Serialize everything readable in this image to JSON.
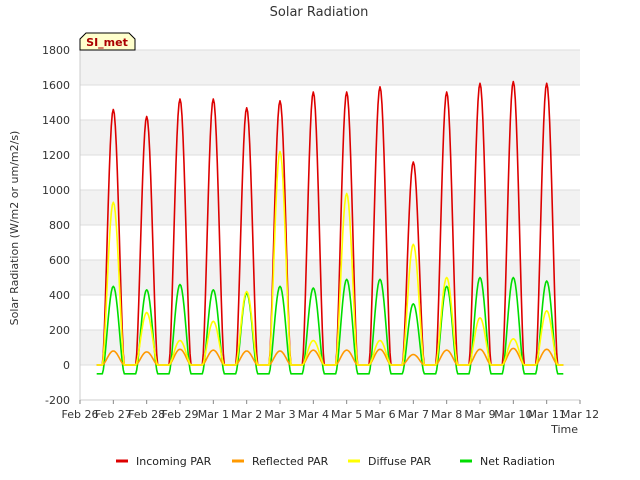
{
  "chart_data": {
    "type": "line",
    "title": "Solar Radiation",
    "xlabel": "Time",
    "ylabel": "Solar Radiation (W/m2 or um/m2/s)",
    "ylim": [
      -200,
      1800
    ],
    "yticks": [
      -200,
      0,
      200,
      400,
      600,
      800,
      1000,
      1200,
      1400,
      1600,
      1800
    ],
    "xlim": [
      0,
      15
    ],
    "x_tick_labels": [
      "Feb 26",
      "Feb 27",
      "Feb 28",
      "Feb 29",
      "Mar 1",
      "Mar 2",
      "Mar 3",
      "Mar 4",
      "Mar 5",
      "Mar 6",
      "Mar 7",
      "Mar 8",
      "Mar 9",
      "Mar 10",
      "Mar 11",
      "Mar 12"
    ],
    "x_units": "days since Feb 26",
    "badge": "SI_met",
    "day_index": [
      1,
      2,
      3,
      4,
      5,
      6,
      7,
      8,
      9,
      10,
      11,
      12,
      13,
      14
    ],
    "series": [
      {
        "name": "Incoming PAR",
        "color": "#dd0000",
        "daily_peak": [
          1460,
          1420,
          1520,
          1520,
          1470,
          1510,
          1560,
          1560,
          1590,
          1160,
          1560,
          1610,
          1620,
          1610
        ]
      },
      {
        "name": "Reflected PAR",
        "color": "#ff9900",
        "daily_peak": [
          80,
          75,
          90,
          85,
          80,
          80,
          85,
          85,
          90,
          60,
          85,
          90,
          95,
          90
        ]
      },
      {
        "name": "Diffuse PAR",
        "color": "#ffff00",
        "daily_peak": [
          930,
          300,
          140,
          250,
          420,
          1220,
          140,
          980,
          140,
          690,
          500,
          270,
          150,
          310
        ]
      },
      {
        "name": "Net Radiation",
        "color": "#00dd00",
        "daily_peak": [
          450,
          430,
          460,
          430,
          410,
          450,
          440,
          490,
          490,
          350,
          450,
          500,
          500,
          480
        ],
        "night_value": -50
      }
    ]
  }
}
